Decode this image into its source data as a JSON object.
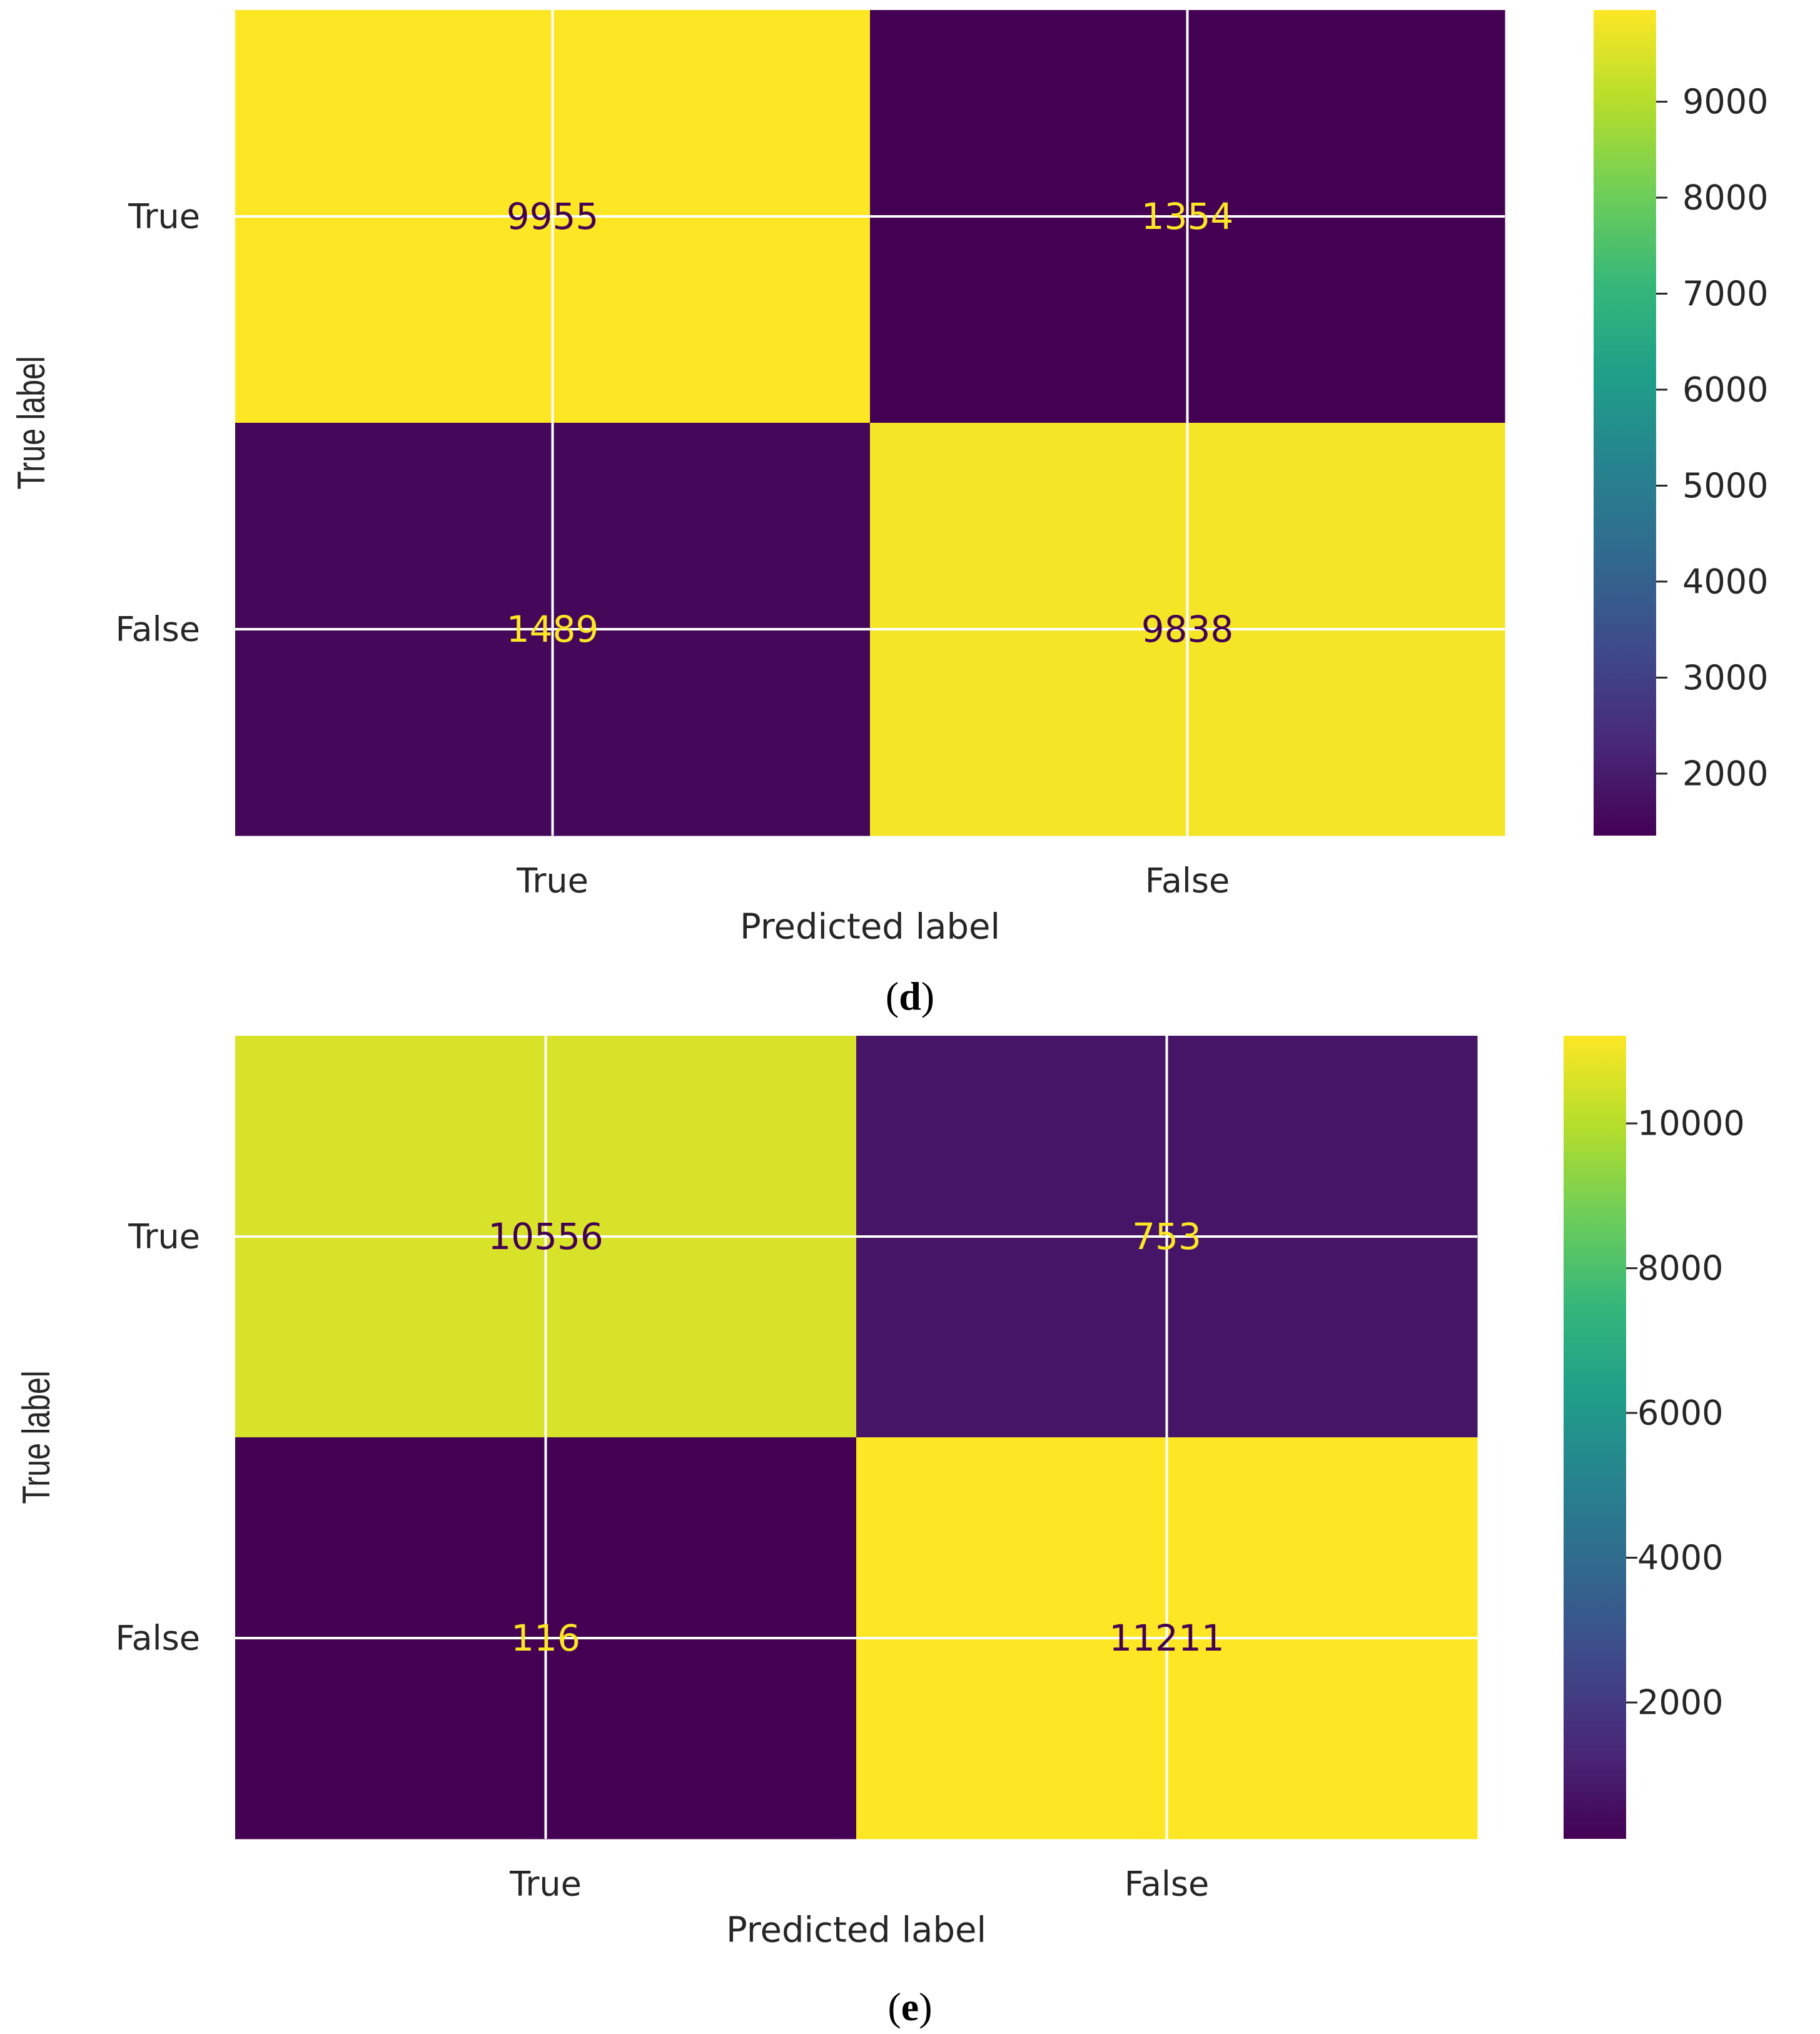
{
  "chart_data": [
    {
      "type": "heatmap",
      "panel_label": "d",
      "matrix": [
        [
          9955,
          1354
        ],
        [
          1489,
          9838
        ]
      ],
      "row_labels": [
        "True",
        "False"
      ],
      "col_labels": [
        "True",
        "False"
      ],
      "xlabel": "Predicted label",
      "ylabel": "True label",
      "colormap": "viridis",
      "colorbar": {
        "range": [
          1354,
          9955
        ],
        "ticks": [
          2000,
          3000,
          4000,
          5000,
          6000,
          7000,
          8000,
          9000
        ],
        "tick_labels": [
          "2000",
          "3000",
          "4000",
          "5000",
          "6000",
          "7000",
          "8000",
          "9000"
        ]
      },
      "grid": true
    },
    {
      "type": "heatmap",
      "panel_label": "e",
      "matrix": [
        [
          10556,
          753
        ],
        [
          116,
          11211
        ]
      ],
      "row_labels": [
        "True",
        "False"
      ],
      "col_labels": [
        "True",
        "False"
      ],
      "xlabel": "Predicted label",
      "ylabel": "True label",
      "colormap": "viridis",
      "colorbar": {
        "range": [
          116,
          11211
        ],
        "ticks": [
          2000,
          4000,
          6000,
          8000,
          10000
        ],
        "tick_labels": [
          "2000",
          "4000",
          "6000",
          "8000",
          "10000"
        ]
      },
      "grid": true
    }
  ],
  "colors": {
    "viridis_stops": [
      "#440154",
      "#482878",
      "#3e4989",
      "#31688e",
      "#26828e",
      "#1f9e89",
      "#35b779",
      "#6ece58",
      "#b5de2b",
      "#fde725"
    ],
    "grid_line": "#ffffff",
    "text": "#262626",
    "caption_text": "#000000"
  }
}
